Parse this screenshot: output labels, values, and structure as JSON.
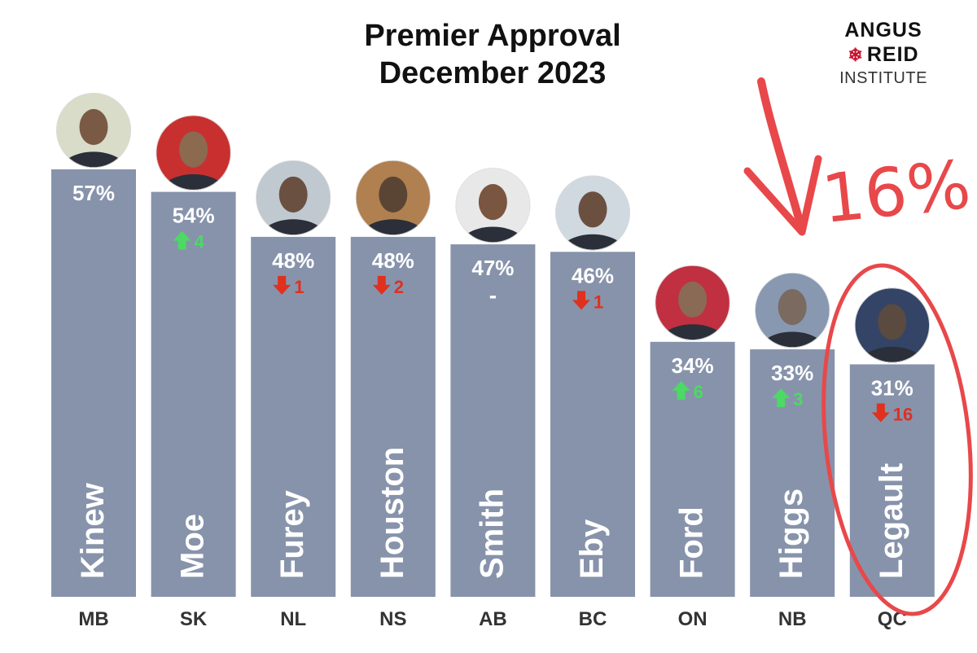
{
  "title_line1": "Premier Approval",
  "title_line2": "December 2023",
  "logo": {
    "line1": "ANGUS",
    "line2": "REID",
    "line3": "INSTITUTE"
  },
  "annotation": {
    "text": "16%"
  },
  "colors": {
    "bar": "#8793ab",
    "up": "#4cd964",
    "down": "#e0301e",
    "annotation": "#e8484a"
  },
  "chart_data": {
    "type": "bar",
    "categories": [
      "MB",
      "SK",
      "NL",
      "NS",
      "AB",
      "BC",
      "ON",
      "NB",
      "QC"
    ],
    "names": [
      "Kinew",
      "Moe",
      "Furey",
      "Houston",
      "Smith",
      "Eby",
      "Ford",
      "Higgs",
      "Legault"
    ],
    "values": [
      57,
      54,
      48,
      48,
      47,
      46,
      34,
      33,
      31
    ],
    "value_labels": [
      "57%",
      "54%",
      "48%",
      "48%",
      "47%",
      "46%",
      "34%",
      "33%",
      "31%"
    ],
    "changes": [
      {
        "dir": "none",
        "text": ""
      },
      {
        "dir": "up",
        "text": "4"
      },
      {
        "dir": "down",
        "text": "1"
      },
      {
        "dir": "down",
        "text": "2"
      },
      {
        "dir": "flat",
        "text": "-"
      },
      {
        "dir": "down",
        "text": "1"
      },
      {
        "dir": "up",
        "text": "6"
      },
      {
        "dir": "up",
        "text": "3"
      },
      {
        "dir": "down",
        "text": "16"
      }
    ],
    "title": "Premier Approval December 2023",
    "ylim": [
      0,
      100
    ],
    "grid": false
  }
}
